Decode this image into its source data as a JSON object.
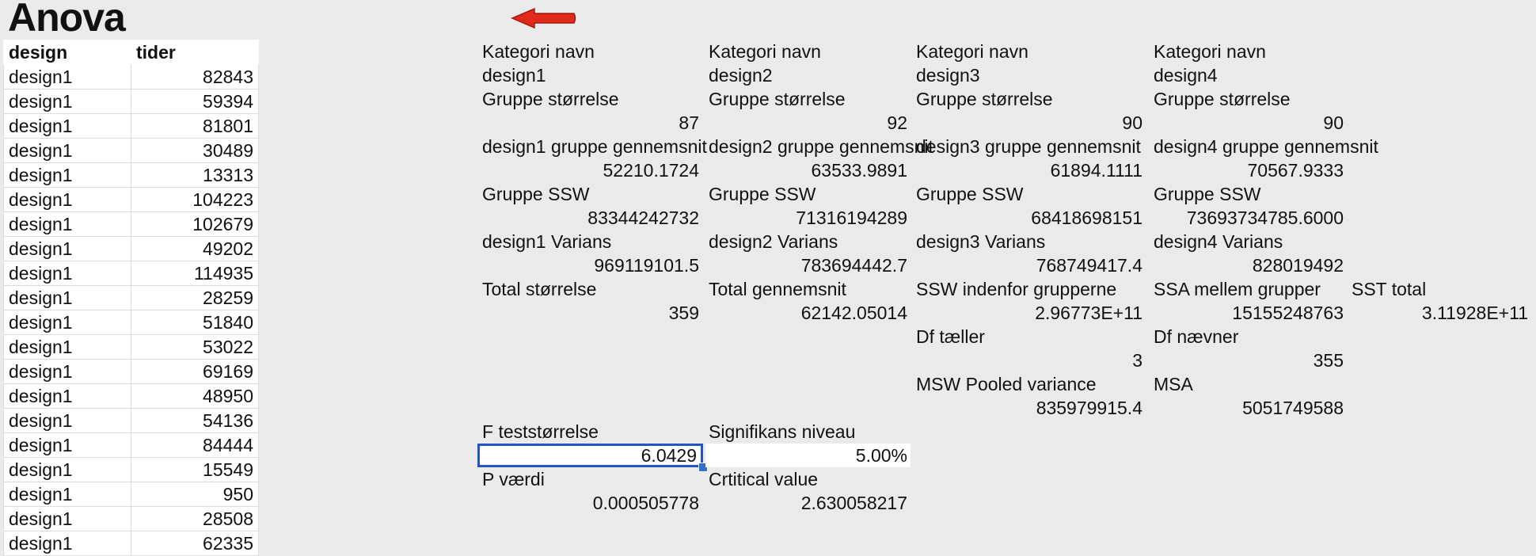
{
  "title": "Anova",
  "table": {
    "headers": [
      "design",
      "tider"
    ],
    "rows": [
      [
        "design1",
        "82843"
      ],
      [
        "design1",
        "59394"
      ],
      [
        "design1",
        "81801"
      ],
      [
        "design1",
        "30489"
      ],
      [
        "design1",
        "13313"
      ],
      [
        "design1",
        "104223"
      ],
      [
        "design1",
        "102679"
      ],
      [
        "design1",
        "49202"
      ],
      [
        "design1",
        "114935"
      ],
      [
        "design1",
        "28259"
      ],
      [
        "design1",
        "51840"
      ],
      [
        "design1",
        "53022"
      ],
      [
        "design1",
        "69169"
      ],
      [
        "design1",
        "48950"
      ],
      [
        "design1",
        "54136"
      ],
      [
        "design1",
        "84444"
      ],
      [
        "design1",
        "15549"
      ],
      [
        "design1",
        "950"
      ],
      [
        "design1",
        "28508"
      ],
      [
        "design1",
        "62335"
      ]
    ]
  },
  "groups": [
    {
      "cat_label": "Kategori navn",
      "cat_value": "design1",
      "size_label": "Gruppe størrelse",
      "size_value": "87",
      "mean_label": "design1 gruppe gennemsnit",
      "mean_value": "52210.1724",
      "ssw_label": "Gruppe SSW",
      "ssw_value": "83344242732",
      "var_label": "design1 Varians",
      "var_value": "969119101.5"
    },
    {
      "cat_label": "Kategori navn",
      "cat_value": "design2",
      "size_label": "Gruppe størrelse",
      "size_value": "92",
      "mean_label": "design2 gruppe gennemsnit",
      "mean_value": "63533.9891",
      "ssw_label": "Gruppe SSW",
      "ssw_value": "71316194289",
      "var_label": "design2 Varians",
      "var_value": "783694442.7"
    },
    {
      "cat_label": "Kategori navn",
      "cat_value": "design3",
      "size_label": "Gruppe størrelse",
      "size_value": "90",
      "mean_label": "design3 gruppe gennemsnit",
      "mean_value": "61894.1111",
      "ssw_label": "Gruppe SSW",
      "ssw_value": "68418698151",
      "var_label": "design3 Varians",
      "var_value": "768749417.4"
    },
    {
      "cat_label": "Kategori navn",
      "cat_value": "design4",
      "size_label": "Gruppe størrelse",
      "size_value": "90",
      "mean_label": "design4 gruppe gennemsnit",
      "mean_value": "70567.9333",
      "ssw_label": "Gruppe SSW",
      "ssw_value": "73693734785.6000",
      "var_label": "design4 Varians",
      "var_value": "828019492"
    }
  ],
  "stats": {
    "total_size_label": "Total størrelse",
    "total_size_value": "359",
    "total_mean_label": "Total gennemsnit",
    "total_mean_value": "62142.05014",
    "ssw_label": "SSW indenfor grupperne",
    "ssw_value": "2.96773E+11",
    "ssa_label": "SSA mellem grupper",
    "ssa_value": "15155248763",
    "sst_label": "SST total",
    "sst_value": "3.11928E+11",
    "df_num_label": "Df tæller",
    "df_num_value": "3",
    "df_den_label": "Df nævner",
    "df_den_value": "355",
    "msw_label": "MSW Pooled variance",
    "msw_value": "835979915.4",
    "msa_label": "MSA",
    "msa_value": "5051749588",
    "f_label": "F teststørrelse",
    "f_value": "6.0429",
    "sig_label": "Signifikans niveau",
    "sig_value": "5.00%",
    "p_label": "P værdi",
    "p_value": "0.000505778",
    "crit_label": "Crtitical value",
    "crit_value": "2.630058217"
  },
  "colors": {
    "arrow": "#e02a1c",
    "selection": "#2356c4"
  }
}
